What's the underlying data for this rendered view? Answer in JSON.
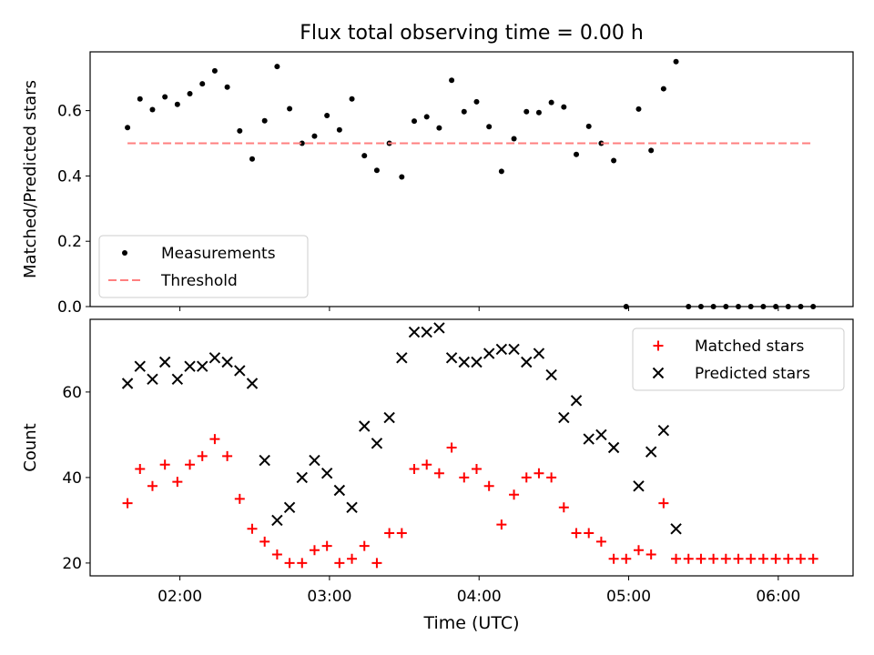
{
  "figure": {
    "title": "Flux total observing time = 0.00 h",
    "xlabel": "Time (UTC)"
  },
  "chart_data": [
    {
      "type": "scatter",
      "title": "Flux total observing time = 0.00 h",
      "xlabel": "",
      "ylabel": "Matched/Predicted stars",
      "xlim": [
        "01:24",
        "06:30"
      ],
      "ylim": [
        0.0,
        0.78
      ],
      "yticks": [
        0.0,
        0.2,
        0.4,
        0.6
      ],
      "legend_position": "lower left",
      "series": [
        {
          "name": "Measurements",
          "marker": "dot",
          "color": "#000000",
          "points": [
            [
              "01:39",
              0.548
            ],
            [
              "01:44",
              0.636
            ],
            [
              "01:49",
              0.603
            ],
            [
              "01:54",
              0.642
            ],
            [
              "01:59",
              0.619
            ],
            [
              "02:04",
              0.652
            ],
            [
              "02:09",
              0.682
            ],
            [
              "02:14",
              0.722
            ],
            [
              "02:19",
              0.672
            ],
            [
              "02:24",
              0.538
            ],
            [
              "02:29",
              0.452
            ],
            [
              "02:34",
              0.569
            ],
            [
              "02:39",
              0.735
            ],
            [
              "02:44",
              0.606
            ],
            [
              "02:49",
              0.5
            ],
            [
              "02:54",
              0.522
            ],
            [
              "02:59",
              0.585
            ],
            [
              "03:04",
              0.541
            ],
            [
              "03:09",
              0.636
            ],
            [
              "03:14",
              0.462
            ],
            [
              "03:19",
              0.417
            ],
            [
              "03:24",
              0.5
            ],
            [
              "03:29",
              0.397
            ],
            [
              "03:34",
              0.568
            ],
            [
              "03:39",
              0.581
            ],
            [
              "03:44",
              0.547
            ],
            [
              "03:49",
              0.693
            ],
            [
              "03:54",
              0.597
            ],
            [
              "03:59",
              0.627
            ],
            [
              "04:04",
              0.551
            ],
            [
              "04:09",
              0.414
            ],
            [
              "04:14",
              0.514
            ],
            [
              "04:19",
              0.597
            ],
            [
              "04:24",
              0.594
            ],
            [
              "04:29",
              0.625
            ],
            [
              "04:34",
              0.611
            ],
            [
              "04:39",
              0.466
            ],
            [
              "04:44",
              0.552
            ],
            [
              "04:49",
              0.5
            ],
            [
              "04:54",
              0.447
            ],
            [
              "04:59",
              0.0
            ],
            [
              "05:04",
              0.605
            ],
            [
              "05:09",
              0.478
            ],
            [
              "05:14",
              0.667
            ],
            [
              "05:19",
              0.75
            ],
            [
              "05:24",
              0.0
            ],
            [
              "05:29",
              0.0
            ],
            [
              "05:34",
              0.0
            ],
            [
              "05:39",
              0.0
            ],
            [
              "05:44",
              0.0
            ],
            [
              "05:49",
              0.0
            ],
            [
              "05:54",
              0.0
            ],
            [
              "05:59",
              0.0
            ],
            [
              "06:04",
              0.0
            ],
            [
              "06:09",
              0.0
            ],
            [
              "06:14",
              0.0
            ]
          ]
        },
        {
          "name": "Threshold",
          "style": "dashed",
          "color": "#ff7f7f",
          "points": [
            [
              "01:39",
              0.5
            ],
            [
              "06:14",
              0.5
            ]
          ]
        }
      ]
    },
    {
      "type": "scatter",
      "title": "",
      "xlabel": "Time (UTC)",
      "ylabel": "Count",
      "xlim": [
        "01:24",
        "06:30"
      ],
      "ylim": [
        17,
        77
      ],
      "yticks": [
        20,
        40,
        60
      ],
      "xticks": [
        "02:00",
        "03:00",
        "04:00",
        "05:00",
        "06:00"
      ],
      "legend_position": "upper right",
      "series": [
        {
          "name": "Matched stars",
          "marker": "plus",
          "color": "#ff0000",
          "points": [
            [
              "01:39",
              34
            ],
            [
              "01:44",
              42
            ],
            [
              "01:49",
              38
            ],
            [
              "01:54",
              43
            ],
            [
              "01:59",
              39
            ],
            [
              "02:04",
              43
            ],
            [
              "02:09",
              45
            ],
            [
              "02:14",
              49
            ],
            [
              "02:19",
              45
            ],
            [
              "02:24",
              35
            ],
            [
              "02:29",
              28
            ],
            [
              "02:34",
              25
            ],
            [
              "02:39",
              22
            ],
            [
              "02:44",
              20
            ],
            [
              "02:49",
              20
            ],
            [
              "02:54",
              23
            ],
            [
              "02:59",
              24
            ],
            [
              "03:04",
              20
            ],
            [
              "03:09",
              21
            ],
            [
              "03:14",
              24
            ],
            [
              "03:19",
              20
            ],
            [
              "03:24",
              27
            ],
            [
              "03:29",
              27
            ],
            [
              "03:34",
              42
            ],
            [
              "03:39",
              43
            ],
            [
              "03:44",
              41
            ],
            [
              "03:49",
              47
            ],
            [
              "03:54",
              40
            ],
            [
              "03:59",
              42
            ],
            [
              "04:04",
              38
            ],
            [
              "04:09",
              29
            ],
            [
              "04:14",
              36
            ],
            [
              "04:19",
              40
            ],
            [
              "04:24",
              41
            ],
            [
              "04:29",
              40
            ],
            [
              "04:34",
              33
            ],
            [
              "04:39",
              27
            ],
            [
              "04:44",
              27
            ],
            [
              "04:49",
              25
            ],
            [
              "04:54",
              21
            ],
            [
              "04:59",
              21
            ],
            [
              "05:04",
              23
            ],
            [
              "05:09",
              22
            ],
            [
              "05:14",
              34
            ],
            [
              "05:19",
              21
            ],
            [
              "05:24",
              21
            ],
            [
              "05:29",
              21
            ],
            [
              "05:34",
              21
            ],
            [
              "05:39",
              21
            ],
            [
              "05:44",
              21
            ],
            [
              "05:49",
              21
            ],
            [
              "05:54",
              21
            ],
            [
              "05:59",
              21
            ],
            [
              "06:04",
              21
            ],
            [
              "06:09",
              21
            ],
            [
              "06:14",
              21
            ]
          ]
        },
        {
          "name": "Predicted stars",
          "marker": "x",
          "color": "#000000",
          "points": [
            [
              "01:39",
              62
            ],
            [
              "01:44",
              66
            ],
            [
              "01:49",
              63
            ],
            [
              "01:54",
              67
            ],
            [
              "01:59",
              63
            ],
            [
              "02:04",
              66
            ],
            [
              "02:09",
              66
            ],
            [
              "02:14",
              68
            ],
            [
              "02:19",
              67
            ],
            [
              "02:24",
              65
            ],
            [
              "02:29",
              62
            ],
            [
              "02:34",
              44
            ],
            [
              "02:39",
              30
            ],
            [
              "02:44",
              33
            ],
            [
              "02:49",
              40
            ],
            [
              "02:54",
              44
            ],
            [
              "02:59",
              41
            ],
            [
              "03:04",
              37
            ],
            [
              "03:09",
              33
            ],
            [
              "03:14",
              52
            ],
            [
              "03:19",
              48
            ],
            [
              "03:24",
              54
            ],
            [
              "03:29",
              68
            ],
            [
              "03:34",
              74
            ],
            [
              "03:39",
              74
            ],
            [
              "03:44",
              75
            ],
            [
              "03:49",
              68
            ],
            [
              "03:54",
              67
            ],
            [
              "03:59",
              67
            ],
            [
              "04:04",
              69
            ],
            [
              "04:09",
              70
            ],
            [
              "04:14",
              70
            ],
            [
              "04:19",
              67
            ],
            [
              "04:24",
              69
            ],
            [
              "04:29",
              64
            ],
            [
              "04:34",
              54
            ],
            [
              "04:39",
              58
            ],
            [
              "04:44",
              49
            ],
            [
              "04:49",
              50
            ],
            [
              "04:54",
              47
            ],
            [
              "05:04",
              38
            ],
            [
              "05:09",
              46
            ],
            [
              "05:14",
              51
            ],
            [
              "05:19",
              28
            ]
          ]
        }
      ]
    }
  ]
}
